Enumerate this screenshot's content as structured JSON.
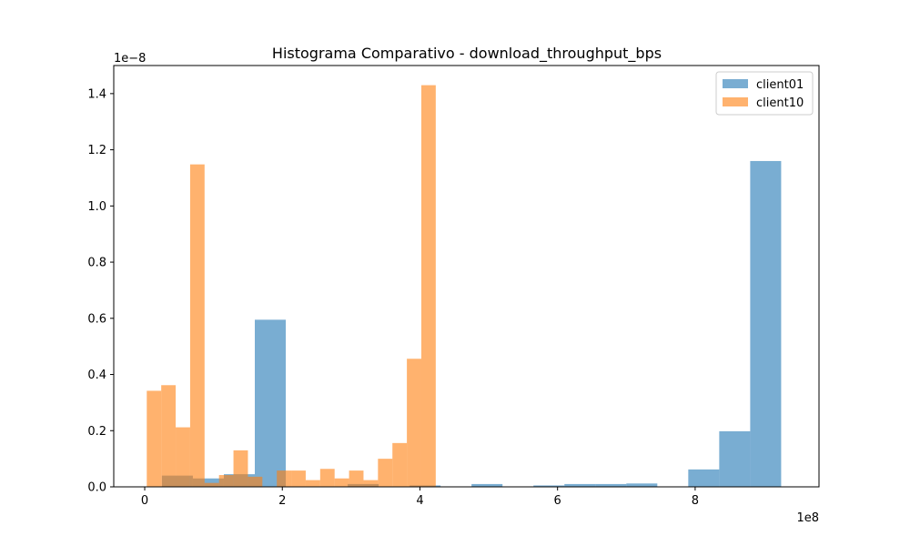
{
  "chart_data": {
    "type": "bar",
    "title": "Histograma Comparativo - download_throughput_bps",
    "xlabel": "",
    "ylabel": "",
    "x_scale_label": "1e8",
    "y_scale_label": "1e−8",
    "xlim": [
      -0.45,
      9.8
    ],
    "ylim": [
      0,
      1.5
    ],
    "x_ticks": [
      0,
      2,
      4,
      6,
      8
    ],
    "y_ticks": [
      0.0,
      0.2,
      0.4,
      0.6,
      0.8,
      1.0,
      1.2,
      1.4
    ],
    "x_tick_labels": [
      "0",
      "2",
      "4",
      "6",
      "8"
    ],
    "y_tick_labels": [
      "0.0",
      "0.2",
      "0.4",
      "0.6",
      "0.8",
      "1.0",
      "1.2",
      "1.4"
    ],
    "legend_position": "top-right",
    "series": [
      {
        "name": "client01",
        "color": "#1f77b4",
        "opacity": 0.6,
        "bins": [
          {
            "x0": 0.25,
            "x1": 0.7,
            "y": 0.04
          },
          {
            "x0": 0.7,
            "x1": 1.15,
            "y": 0.03
          },
          {
            "x0": 1.15,
            "x1": 1.6,
            "y": 0.045
          },
          {
            "x0": 1.6,
            "x1": 2.05,
            "y": 0.595
          },
          {
            "x0": 2.05,
            "x1": 2.5,
            "y": 0.0
          },
          {
            "x0": 2.5,
            "x1": 2.95,
            "y": 0.0
          },
          {
            "x0": 2.95,
            "x1": 3.4,
            "y": 0.01
          },
          {
            "x0": 3.4,
            "x1": 3.85,
            "y": 0.0
          },
          {
            "x0": 3.85,
            "x1": 4.3,
            "y": 0.005
          },
          {
            "x0": 4.3,
            "x1": 4.75,
            "y": 0.0
          },
          {
            "x0": 4.75,
            "x1": 5.2,
            "y": 0.01
          },
          {
            "x0": 5.2,
            "x1": 5.65,
            "y": 0.0
          },
          {
            "x0": 5.65,
            "x1": 6.1,
            "y": 0.005
          },
          {
            "x0": 6.1,
            "x1": 6.55,
            "y": 0.01
          },
          {
            "x0": 6.55,
            "x1": 7.0,
            "y": 0.01
          },
          {
            "x0": 7.0,
            "x1": 7.45,
            "y": 0.012
          },
          {
            "x0": 7.45,
            "x1": 7.9,
            "y": 0.0
          },
          {
            "x0": 7.9,
            "x1": 8.35,
            "y": 0.062
          },
          {
            "x0": 8.35,
            "x1": 8.8,
            "y": 0.198
          },
          {
            "x0": 8.8,
            "x1": 9.25,
            "y": 1.16
          }
        ]
      },
      {
        "name": "client10",
        "color": "#ff7f0e",
        "opacity": 0.6,
        "bins": [
          {
            "x0": 0.03,
            "x1": 0.24,
            "y": 0.342
          },
          {
            "x0": 0.24,
            "x1": 0.45,
            "y": 0.362
          },
          {
            "x0": 0.45,
            "x1": 0.66,
            "y": 0.212
          },
          {
            "x0": 0.66,
            "x1": 0.87,
            "y": 1.148
          },
          {
            "x0": 0.87,
            "x1": 1.08,
            "y": 0.014
          },
          {
            "x0": 1.08,
            "x1": 1.29,
            "y": 0.042
          },
          {
            "x0": 1.29,
            "x1": 1.5,
            "y": 0.13
          },
          {
            "x0": 1.5,
            "x1": 1.71,
            "y": 0.036
          },
          {
            "x0": 1.71,
            "x1": 1.92,
            "y": 0.0
          },
          {
            "x0": 1.92,
            "x1": 2.13,
            "y": 0.058
          },
          {
            "x0": 2.13,
            "x1": 2.34,
            "y": 0.058
          },
          {
            "x0": 2.34,
            "x1": 2.55,
            "y": 0.024
          },
          {
            "x0": 2.55,
            "x1": 2.76,
            "y": 0.064
          },
          {
            "x0": 2.76,
            "x1": 2.97,
            "y": 0.03
          },
          {
            "x0": 2.97,
            "x1": 3.18,
            "y": 0.058
          },
          {
            "x0": 3.18,
            "x1": 3.39,
            "y": 0.024
          },
          {
            "x0": 3.39,
            "x1": 3.6,
            "y": 0.1
          },
          {
            "x0": 3.6,
            "x1": 3.81,
            "y": 0.156
          },
          {
            "x0": 3.81,
            "x1": 4.02,
            "y": 0.456
          },
          {
            "x0": 4.02,
            "x1": 4.23,
            "y": 1.43
          }
        ]
      }
    ]
  }
}
